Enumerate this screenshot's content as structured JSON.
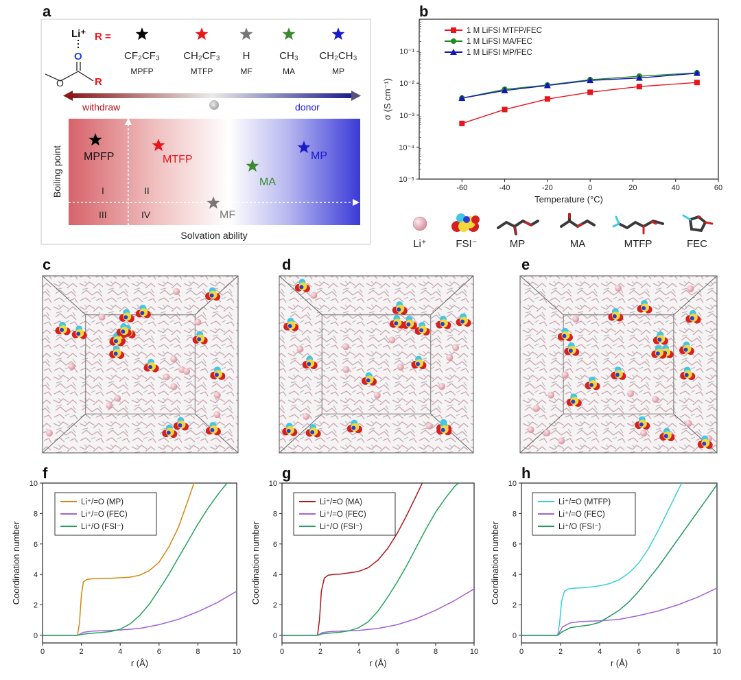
{
  "panel_labels": {
    "a": "a",
    "b": "b",
    "c": "c",
    "d": "d",
    "e": "e",
    "f": "f",
    "g": "g",
    "h": "h"
  },
  "panel_a": {
    "li_label": "Li⁺",
    "r_eq": "R =",
    "r_label": "R",
    "substituents": [
      {
        "formula": "CF₂CF₃",
        "name": "MPFP",
        "color": "#000000"
      },
      {
        "formula": "CH₂CF₃",
        "name": "MTFP",
        "color": "#e8151b"
      },
      {
        "formula": "H",
        "name": "MF",
        "color": "#777777"
      },
      {
        "formula": "CH₃",
        "name": "MA",
        "color": "#3a8a2e"
      },
      {
        "formula": "CH₂CH₃",
        "name": "MP",
        "color": "#1a1acb"
      }
    ],
    "withdraw": "withdraw",
    "donor": "donor",
    "minus": "-",
    "y_axis": "Boiling point",
    "x_axis": "Solvation ability",
    "quadrants": [
      "I",
      "II",
      "III",
      "IV"
    ],
    "solvents": [
      {
        "name": "MPFP",
        "color": "#000000"
      },
      {
        "name": "MTFP",
        "color": "#e8151b"
      },
      {
        "name": "MA",
        "color": "#3a8a2e"
      },
      {
        "name": "MP",
        "color": "#1a1acb"
      },
      {
        "name": "MF",
        "color": "#777777"
      }
    ]
  },
  "molecule_legend": [
    "Li⁺",
    "FSI⁻",
    "MP",
    "MA",
    "MTFP",
    "FEC"
  ],
  "chart_data": [
    {
      "id": "b",
      "type": "line",
      "xlabel": "Temperature (°C)",
      "ylabel": "σ (S cm⁻¹)",
      "yscale": "log",
      "xlim": [
        -80,
        60
      ],
      "ylim": [
        1e-05,
        1
      ],
      "xticks": [
        -60,
        -40,
        -20,
        0,
        20,
        40,
        60
      ],
      "yticks": [
        {
          "v": 1e-05,
          "t": "10⁻⁵"
        },
        {
          "v": 0.0001,
          "t": "10⁻⁴"
        },
        {
          "v": 0.001,
          "t": "10⁻³"
        },
        {
          "v": 0.01,
          "t": "10⁻²"
        },
        {
          "v": 0.1,
          "t": "10⁻¹"
        }
      ],
      "series": [
        {
          "name": "1 M LiFSI MTFP/FEC",
          "color": "#e8151b",
          "marker": "square",
          "x": [
            -60,
            -40,
            -20,
            0,
            23,
            50
          ],
          "y": [
            0.00055,
            0.0015,
            0.0032,
            0.0052,
            0.0078,
            0.0105
          ]
        },
        {
          "name": "1 M LiFSI MA/FEC",
          "color": "#1f8a1f",
          "marker": "circle",
          "x": [
            -60,
            -40,
            -20,
            0,
            23,
            50
          ],
          "y": [
            0.0034,
            0.0064,
            0.0087,
            0.0128,
            0.0165,
            0.021
          ]
        },
        {
          "name": "1 M LiFSI MP/FEC",
          "color": "#1414b8",
          "marker": "triangle",
          "x": [
            -60,
            -40,
            -20,
            0,
            23,
            50
          ],
          "y": [
            0.0034,
            0.0059,
            0.0085,
            0.0122,
            0.0145,
            0.0205
          ]
        }
      ]
    },
    {
      "id": "f",
      "type": "line",
      "xlabel": "r (Å)",
      "ylabel": "Coordination number",
      "xlim": [
        0,
        10
      ],
      "ylim": [
        -0.5,
        10
      ],
      "xticks": [
        0,
        2,
        4,
        6,
        8,
        10
      ],
      "yticks": [
        0,
        2,
        4,
        6,
        8,
        10
      ],
      "series": [
        {
          "name": "Li⁺/=O (MP)",
          "color": "#d4870b",
          "x": [
            0,
            1.8,
            1.9,
            2.0,
            2.1,
            2.3,
            2.6,
            3,
            3.5,
            4,
            4.5,
            5,
            5.5,
            6,
            6.5,
            7,
            7.5,
            7.8
          ],
          "y": [
            0,
            0,
            0.8,
            2.6,
            3.5,
            3.68,
            3.72,
            3.72,
            3.75,
            3.78,
            3.82,
            3.95,
            4.25,
            4.8,
            5.8,
            7.1,
            8.9,
            10
          ]
        },
        {
          "name": "Li⁺/=O (FEC)",
          "color": "#a361d6",
          "x": [
            0,
            1.8,
            2.1,
            2.5,
            3,
            3.5,
            4,
            5,
            6,
            7,
            8,
            9,
            10
          ],
          "y": [
            0,
            0,
            0.2,
            0.27,
            0.3,
            0.32,
            0.35,
            0.45,
            0.7,
            1.05,
            1.55,
            2.15,
            2.9
          ]
        },
        {
          "name": "Li⁺/O (FSI⁻)",
          "color": "#22a35c",
          "x": [
            0,
            1.8,
            2.1,
            2.5,
            3,
            3.5,
            4,
            4.5,
            5,
            5.5,
            6,
            6.5,
            7,
            7.5,
            8,
            8.5,
            9,
            9.5
          ],
          "y": [
            0,
            0,
            0.08,
            0.13,
            0.18,
            0.25,
            0.4,
            0.75,
            1.3,
            2.05,
            3.0,
            4.0,
            5.1,
            6.2,
            7.3,
            8.3,
            9.2,
            10
          ]
        }
      ]
    },
    {
      "id": "g",
      "type": "line",
      "xlabel": "r (Å)",
      "ylabel": "Coordination number",
      "xlim": [
        0,
        10
      ],
      "ylim": [
        -0.5,
        10
      ],
      "xticks": [
        0,
        2,
        4,
        6,
        8,
        10
      ],
      "yticks": [
        0,
        2,
        4,
        6,
        8,
        10
      ],
      "series": [
        {
          "name": "Li⁺/=O (MA)",
          "color": "#b0151b",
          "x": [
            0,
            1.85,
            1.95,
            2.05,
            2.2,
            2.4,
            2.7,
            3,
            3.5,
            4,
            4.5,
            5,
            5.5,
            6,
            6.5,
            7,
            7.3
          ],
          "y": [
            0,
            0,
            1.0,
            2.9,
            3.75,
            3.95,
            4.0,
            4.02,
            4.1,
            4.2,
            4.45,
            4.95,
            5.7,
            6.7,
            7.9,
            9.2,
            10
          ]
        },
        {
          "name": "Li⁺/=O (FEC)",
          "color": "#a361d6",
          "x": [
            0,
            1.85,
            2.1,
            2.5,
            3,
            4,
            5,
            6,
            7,
            8,
            9,
            10
          ],
          "y": [
            0,
            0,
            0.18,
            0.25,
            0.28,
            0.32,
            0.45,
            0.7,
            1.1,
            1.65,
            2.3,
            3.05
          ]
        },
        {
          "name": "Li⁺/O (FSI⁻)",
          "color": "#22a35c",
          "x": [
            0,
            1.85,
            2.1,
            2.5,
            3,
            3.5,
            4,
            4.5,
            5,
            5.5,
            6,
            6.5,
            7,
            7.5,
            8,
            8.5,
            9,
            9.2
          ],
          "y": [
            0,
            0,
            0.1,
            0.15,
            0.2,
            0.3,
            0.5,
            0.9,
            1.6,
            2.5,
            3.5,
            4.6,
            5.8,
            7.0,
            8.1,
            9.0,
            9.8,
            10
          ]
        }
      ]
    },
    {
      "id": "h",
      "type": "line",
      "xlabel": "r (Å)",
      "ylabel": "Coordination number",
      "xlim": [
        0,
        10
      ],
      "ylim": [
        -0.5,
        10
      ],
      "xticks": [
        0,
        2,
        4,
        6,
        8,
        10
      ],
      "yticks": [
        0,
        2,
        4,
        6,
        8,
        10
      ],
      "series": [
        {
          "name": "Li⁺/=O (MTFP)",
          "color": "#34d1d4",
          "x": [
            0,
            1.85,
            1.95,
            2.05,
            2.2,
            2.4,
            2.7,
            3,
            3.5,
            4,
            4.5,
            5,
            5.5,
            6,
            6.5,
            7,
            7.5,
            8,
            8.2
          ],
          "y": [
            0,
            0,
            0.8,
            2.2,
            2.9,
            3.05,
            3.1,
            3.12,
            3.17,
            3.25,
            3.4,
            3.65,
            4.1,
            4.75,
            5.7,
            6.9,
            8.2,
            9.5,
            10
          ]
        },
        {
          "name": "Li⁺/=O (FEC)",
          "color": "#a361d6",
          "x": [
            0,
            1.85,
            2.1,
            2.5,
            3,
            4,
            5,
            6,
            7,
            8,
            9,
            10
          ],
          "y": [
            0,
            0,
            0.55,
            0.82,
            0.9,
            0.95,
            1.05,
            1.3,
            1.6,
            2.0,
            2.5,
            3.1
          ]
        },
        {
          "name": "Li⁺/O (FSI⁻)",
          "color": "#1f9a5c",
          "x": [
            0,
            1.85,
            2.1,
            2.5,
            3,
            3.5,
            4,
            4.5,
            5,
            5.5,
            6,
            6.5,
            7,
            7.5,
            8,
            8.5,
            9,
            9.5,
            10
          ],
          "y": [
            0,
            0,
            0.25,
            0.5,
            0.6,
            0.68,
            0.85,
            1.25,
            1.65,
            2.2,
            2.9,
            3.7,
            4.5,
            5.4,
            6.3,
            7.2,
            8.1,
            9.0,
            9.9
          ]
        }
      ]
    }
  ]
}
